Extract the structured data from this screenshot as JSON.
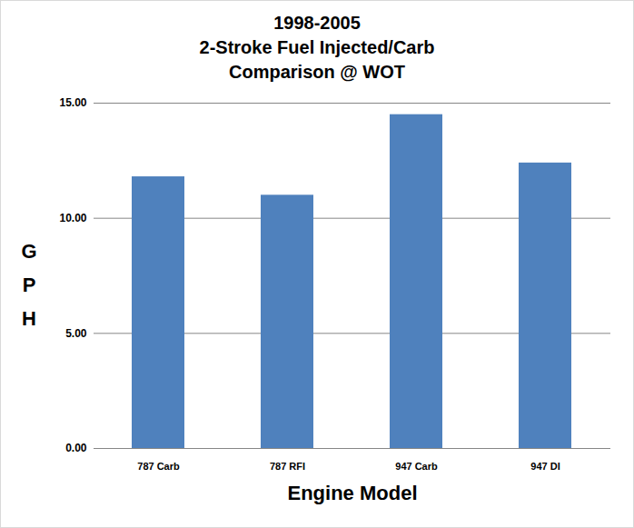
{
  "chart_data": {
    "type": "bar",
    "title": "1998-2005\n2-Stroke Fuel Injected/Carb\nComparison @ WOT",
    "x_label": "Engine Model",
    "y_label": "GPH",
    "categories": [
      "787 Carb",
      "787 RFI",
      "947 Carb",
      "947 DI"
    ],
    "values": [
      11.8,
      11.0,
      14.5,
      12.4
    ],
    "color": "#4f81bd",
    "ylim": [
      0,
      15
    ],
    "yticks": [
      {
        "value": 0,
        "label": "0.00"
      },
      {
        "value": 5,
        "label": "5.00"
      },
      {
        "value": 10,
        "label": "10.00"
      },
      {
        "value": 15,
        "label": "15.00"
      }
    ],
    "grid": true
  }
}
